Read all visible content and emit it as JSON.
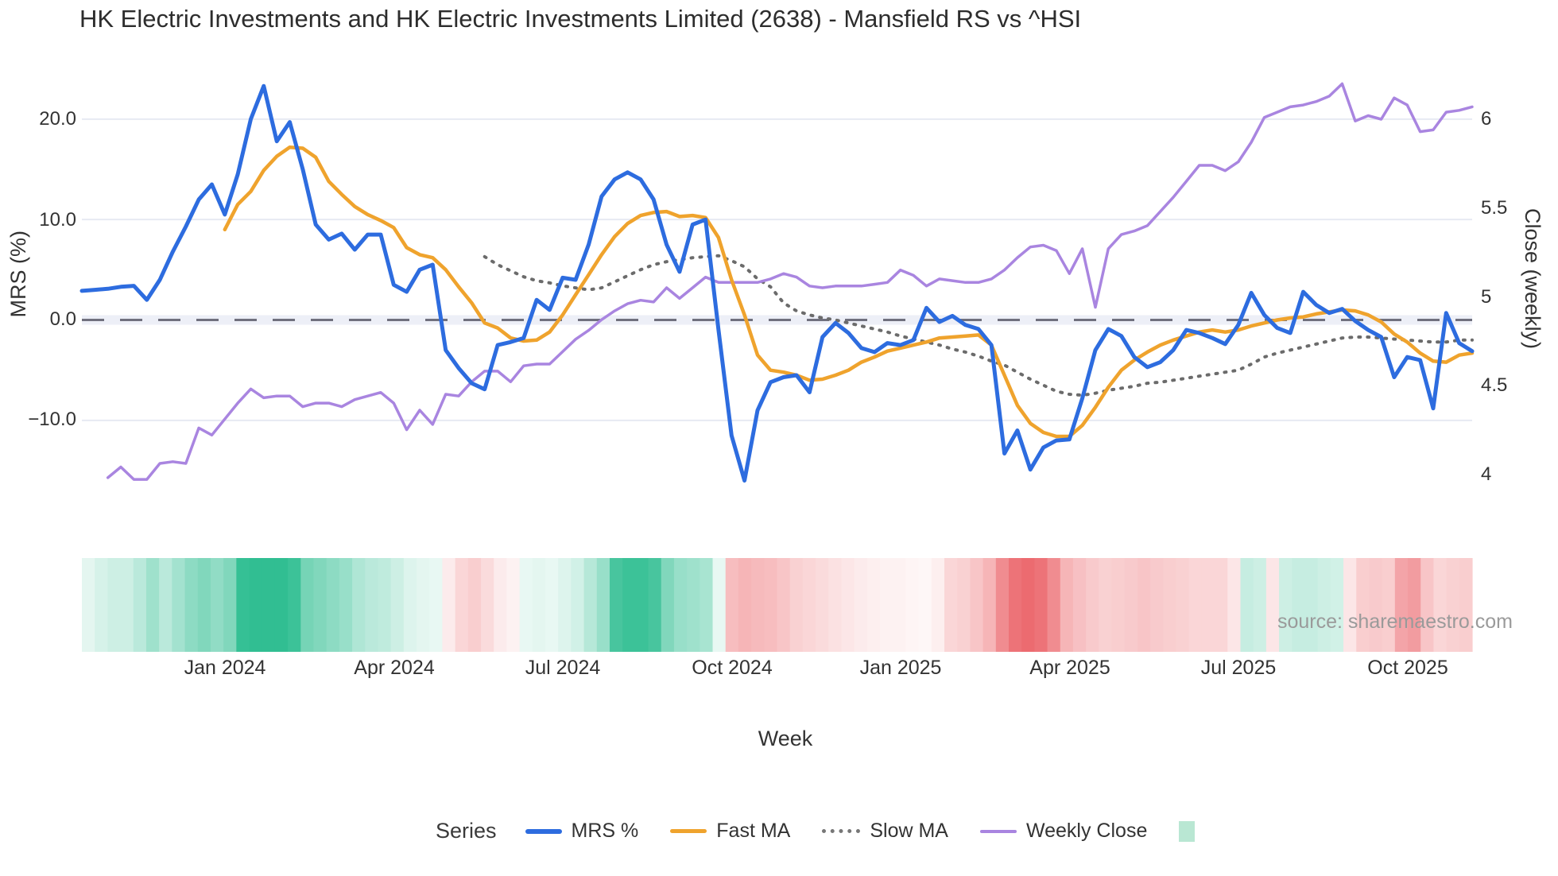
{
  "page": {
    "title": "HK Electric Investments and HK Electric Investments Limited (2638) - Mansfield RS vs ^HSI"
  },
  "source": {
    "text": "source: sharemaestro.com"
  },
  "legend": {
    "title": "Series",
    "items": [
      "MRS %",
      "Fast MA",
      "Slow MA",
      "Weekly Close"
    ],
    "heat_swatch_color": "#b9e7d3"
  },
  "chart_data": {
    "type": "line",
    "title": "HK Electric Investments and HK Electric Investments Limited (2638) - Mansfield RS vs ^HSI",
    "xlabel": "Week",
    "ylabel_left": "MRS (%)",
    "ylabel_right": "Close (weekly)",
    "x_tick_labels": [
      "Jan 2024",
      "Apr 2024",
      "Jul 2024",
      "Oct 2024",
      "Jan 2025",
      "Apr 2025",
      "Jul 2025",
      "Oct 2025"
    ],
    "x_tick_weeks": [
      11,
      24,
      37,
      50,
      63,
      76,
      89,
      102
    ],
    "y_left_tick_labels": [
      "20.0",
      "10.0",
      "0.0",
      "−10.0"
    ],
    "y_left_tick_values": [
      20,
      10,
      0,
      -10
    ],
    "y_right_tick_labels": [
      "6",
      "5.5",
      "5",
      "4.5",
      "4"
    ],
    "y_right_tick_values": [
      6,
      5.5,
      5,
      4.5,
      4
    ],
    "ylim_left": [
      -18.0,
      25.1
    ],
    "ylim_right": [
      3.85,
      6.29
    ],
    "grid": true,
    "legend_position": "bottom",
    "weeks": 108,
    "zero_line": {
      "value": 0,
      "style": "dashed",
      "color": "#70707e"
    },
    "series": [
      {
        "name": "MRS %",
        "axis": "left",
        "color": "#2d6cdf",
        "width": 5,
        "dash": null,
        "values": [
          2.9,
          3.0,
          3.1,
          3.3,
          3.4,
          2.0,
          4.0,
          6.8,
          9.3,
          12.0,
          13.5,
          10.5,
          14.5,
          20.0,
          23.3,
          17.8,
          19.7,
          15.0,
          9.5,
          8.0,
          8.6,
          7.0,
          8.5,
          8.5,
          3.5,
          2.8,
          5.0,
          5.5,
          -3.0,
          -4.8,
          -6.3,
          -6.9,
          -2.5,
          -2.2,
          -1.8,
          2.0,
          1.0,
          4.2,
          4.0,
          7.5,
          12.3,
          14.0,
          14.7,
          14.0,
          12.0,
          7.5,
          4.8,
          9.5,
          10.0,
          -1.0,
          -11.5,
          -16.0,
          -9.0,
          -6.2,
          -5.7,
          -5.5,
          -7.2,
          -1.7,
          -0.3,
          -1.3,
          -2.8,
          -3.2,
          -2.3,
          -2.5,
          -2.0,
          1.2,
          -0.2,
          0.4,
          -0.5,
          -0.9,
          -2.5,
          -13.3,
          -11.0,
          -14.9,
          -12.7,
          -12.0,
          -11.9,
          -7.8,
          -3.0,
          -0.9,
          -1.6,
          -3.7,
          -4.7,
          -4.2,
          -3.0,
          -1.0,
          -1.3,
          -1.8,
          -2.4,
          -0.5,
          2.7,
          0.5,
          -0.8,
          -1.3,
          2.8,
          1.5,
          0.7,
          1.1,
          -0.1,
          -1.0,
          -1.7,
          -5.7,
          -3.7,
          -4.0,
          -8.8,
          0.7,
          -2.3,
          -3.1
        ]
      },
      {
        "name": "Fast MA",
        "axis": "left",
        "color": "#efa32d",
        "width": 4.5,
        "dash": null,
        "values": [
          null,
          null,
          null,
          null,
          null,
          null,
          null,
          null,
          null,
          null,
          null,
          9.0,
          11.5,
          12.8,
          14.9,
          16.3,
          17.2,
          17.1,
          16.2,
          13.8,
          12.5,
          11.3,
          10.5,
          9.9,
          9.2,
          7.2,
          6.5,
          6.2,
          5.0,
          3.3,
          1.7,
          -0.3,
          -0.8,
          -1.8,
          -2.1,
          -2.0,
          -1.2,
          0.5,
          2.5,
          4.5,
          6.5,
          8.3,
          9.6,
          10.4,
          10.7,
          10.8,
          10.3,
          10.4,
          10.2,
          8.2,
          4.0,
          0.5,
          -3.5,
          -5.0,
          -5.2,
          -5.5,
          -6.0,
          -5.9,
          -5.5,
          -5.0,
          -4.2,
          -3.7,
          -3.1,
          -2.8,
          -2.5,
          -2.2,
          -1.8,
          -1.7,
          -1.6,
          -1.5,
          -2.5,
          -5.5,
          -8.5,
          -10.3,
          -11.2,
          -11.6,
          -11.6,
          -10.5,
          -8.7,
          -6.7,
          -5.0,
          -4.0,
          -3.2,
          -2.5,
          -2.0,
          -1.6,
          -1.2,
          -1.0,
          -1.2,
          -1.0,
          -0.6,
          -0.3,
          0.0,
          0.2,
          0.3,
          0.6,
          0.8,
          1.0,
          0.9,
          0.5,
          -0.2,
          -1.4,
          -2.2,
          -3.3,
          -4.1,
          -4.2,
          -3.5,
          -3.3
        ]
      },
      {
        "name": "Slow MA",
        "axis": "left",
        "color": "#6b6b6b",
        "width": 4,
        "dash": "2 9",
        "values": [
          null,
          null,
          null,
          null,
          null,
          null,
          null,
          null,
          null,
          null,
          null,
          null,
          null,
          null,
          null,
          null,
          null,
          null,
          null,
          null,
          null,
          null,
          null,
          null,
          null,
          null,
          null,
          null,
          null,
          null,
          null,
          6.3,
          5.5,
          4.9,
          4.3,
          3.9,
          3.7,
          3.4,
          3.2,
          3.0,
          3.2,
          3.8,
          4.4,
          5.0,
          5.5,
          5.8,
          6.0,
          6.2,
          6.3,
          6.4,
          5.9,
          5.3,
          4.1,
          3.3,
          1.7,
          0.9,
          0.5,
          0.2,
          0.0,
          -0.3,
          -0.6,
          -0.9,
          -1.2,
          -1.6,
          -1.9,
          -2.2,
          -2.5,
          -2.9,
          -3.2,
          -3.6,
          -4.1,
          -4.5,
          -5.2,
          -5.9,
          -6.5,
          -7.1,
          -7.4,
          -7.5,
          -7.3,
          -7.0,
          -6.8,
          -6.6,
          -6.3,
          -6.2,
          -6.0,
          -5.8,
          -5.6,
          -5.4,
          -5.2,
          -5.0,
          -4.4,
          -3.7,
          -3.3,
          -3.0,
          -2.7,
          -2.4,
          -2.1,
          -1.8,
          -1.7,
          -1.7,
          -1.8,
          -1.9,
          -2.0,
          -2.1,
          -2.2,
          -2.2,
          -2.0,
          -2.0
        ]
      },
      {
        "name": "Weekly Close",
        "axis": "right",
        "color": "#a985e0",
        "width": 3.5,
        "dash": null,
        "values": [
          null,
          null,
          3.98,
          4.04,
          3.97,
          3.97,
          4.06,
          4.07,
          4.06,
          4.26,
          4.22,
          4.31,
          4.4,
          4.48,
          4.43,
          4.44,
          4.44,
          4.38,
          4.4,
          4.4,
          4.38,
          4.42,
          4.44,
          4.46,
          4.4,
          4.25,
          4.36,
          4.28,
          4.45,
          4.44,
          4.52,
          4.58,
          4.58,
          4.52,
          4.61,
          4.62,
          4.62,
          4.69,
          4.76,
          4.81,
          4.87,
          4.92,
          4.96,
          4.98,
          4.97,
          5.05,
          4.99,
          5.05,
          5.11,
          5.08,
          5.08,
          5.08,
          5.08,
          5.1,
          5.13,
          5.11,
          5.06,
          5.05,
          5.06,
          5.06,
          5.06,
          5.07,
          5.08,
          5.15,
          5.12,
          5.06,
          5.1,
          5.09,
          5.08,
          5.08,
          5.1,
          5.15,
          5.22,
          5.28,
          5.29,
          5.26,
          5.13,
          5.27,
          4.94,
          5.27,
          5.35,
          5.37,
          5.4,
          5.48,
          5.56,
          5.65,
          5.74,
          5.74,
          5.71,
          5.76,
          5.87,
          6.01,
          6.04,
          6.07,
          6.08,
          6.1,
          6.13,
          6.2,
          5.99,
          6.02,
          6.0,
          6.12,
          6.08,
          5.93,
          5.94,
          6.04,
          6.05,
          6.07
        ]
      }
    ],
    "heatmap": {
      "positive_color": "#1ab786",
      "negative_color": "#ea5a60",
      "values": [
        0.12,
        0.18,
        0.22,
        0.22,
        0.3,
        0.42,
        0.3,
        0.4,
        0.5,
        0.55,
        0.48,
        0.55,
        0.88,
        0.9,
        0.9,
        0.9,
        0.85,
        0.6,
        0.55,
        0.5,
        0.45,
        0.35,
        0.3,
        0.28,
        0.22,
        0.15,
        0.12,
        0.1,
        -0.12,
        -0.25,
        -0.3,
        -0.22,
        -0.12,
        -0.08,
        0.1,
        0.12,
        0.1,
        0.15,
        0.2,
        0.32,
        0.45,
        0.8,
        0.85,
        0.85,
        0.8,
        0.55,
        0.45,
        0.42,
        0.38,
        0.1,
        -0.4,
        -0.45,
        -0.42,
        -0.4,
        -0.35,
        -0.28,
        -0.25,
        -0.22,
        -0.18,
        -0.15,
        -0.12,
        -0.1,
        -0.08,
        -0.08,
        -0.06,
        -0.05,
        -0.1,
        -0.25,
        -0.28,
        -0.35,
        -0.45,
        -0.7,
        -0.85,
        -0.9,
        -0.85,
        -0.7,
        -0.45,
        -0.38,
        -0.32,
        -0.28,
        -0.3,
        -0.32,
        -0.35,
        -0.32,
        -0.3,
        -0.28,
        -0.25,
        -0.25,
        -0.25,
        -0.15,
        0.25,
        0.22,
        -0.15,
        0.22,
        0.25,
        0.25,
        0.22,
        0.2,
        -0.15,
        -0.3,
        -0.32,
        -0.3,
        -0.55,
        -0.6,
        -0.35,
        -0.25,
        -0.28,
        -0.3
      ]
    }
  }
}
